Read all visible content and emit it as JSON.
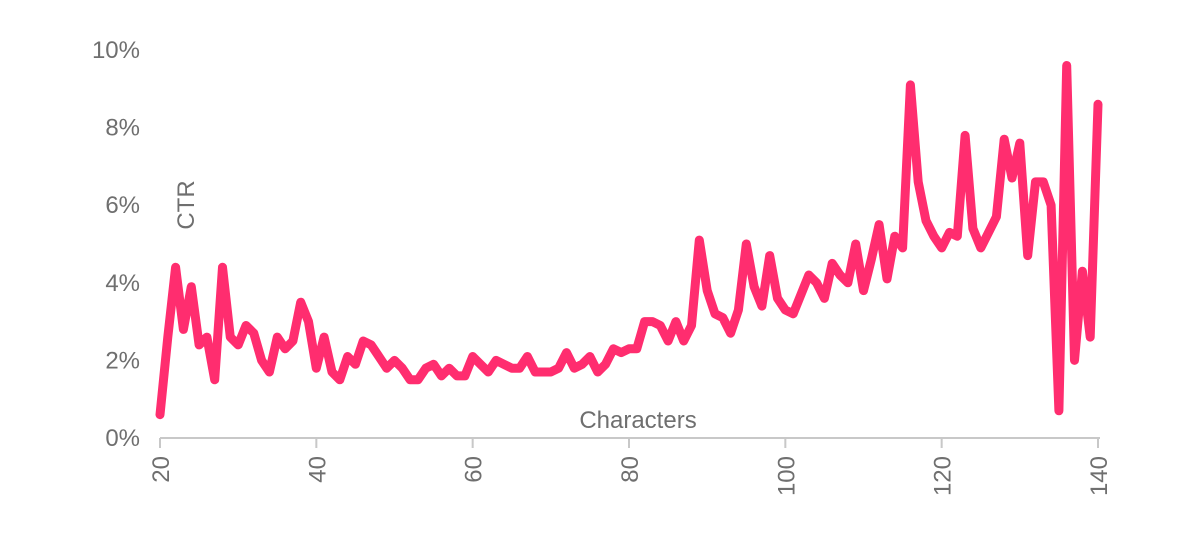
{
  "chart_data": {
    "type": "line",
    "xlabel": "Characters",
    "ylabel": "CTR",
    "xlim": [
      20,
      140
    ],
    "ylim": [
      0,
      10
    ],
    "x_ticks": [
      20,
      40,
      60,
      80,
      100,
      120,
      140
    ],
    "y_ticks": [
      {
        "value": 0,
        "label": "0%"
      },
      {
        "value": 2,
        "label": "2%"
      },
      {
        "value": 4,
        "label": "4%"
      },
      {
        "value": 6,
        "label": "6%"
      },
      {
        "value": 8,
        "label": "8%"
      },
      {
        "value": 10,
        "label": "10%"
      }
    ],
    "grid": false,
    "series": [
      {
        "color": "#ff2d6f",
        "points": [
          [
            20,
            0.6
          ],
          [
            21,
            2.6
          ],
          [
            22,
            4.4
          ],
          [
            23,
            2.8
          ],
          [
            24,
            3.9
          ],
          [
            25,
            2.4
          ],
          [
            26,
            2.6
          ],
          [
            27,
            1.5
          ],
          [
            28,
            4.4
          ],
          [
            29,
            2.6
          ],
          [
            30,
            2.4
          ],
          [
            31,
            2.9
          ],
          [
            32,
            2.7
          ],
          [
            33,
            2.0
          ],
          [
            34,
            1.7
          ],
          [
            35,
            2.6
          ],
          [
            36,
            2.3
          ],
          [
            37,
            2.5
          ],
          [
            38,
            3.5
          ],
          [
            39,
            3.0
          ],
          [
            40,
            1.8
          ],
          [
            41,
            2.6
          ],
          [
            42,
            1.7
          ],
          [
            43,
            1.5
          ],
          [
            44,
            2.1
          ],
          [
            45,
            1.9
          ],
          [
            46,
            2.5
          ],
          [
            47,
            2.4
          ],
          [
            48,
            2.1
          ],
          [
            49,
            1.8
          ],
          [
            50,
            2.0
          ],
          [
            51,
            1.8
          ],
          [
            52,
            1.5
          ],
          [
            53,
            1.5
          ],
          [
            54,
            1.8
          ],
          [
            55,
            1.9
          ],
          [
            56,
            1.6
          ],
          [
            57,
            1.8
          ],
          [
            58,
            1.6
          ],
          [
            59,
            1.6
          ],
          [
            60,
            2.1
          ],
          [
            61,
            1.9
          ],
          [
            62,
            1.7
          ],
          [
            63,
            2.0
          ],
          [
            64,
            1.9
          ],
          [
            65,
            1.8
          ],
          [
            66,
            1.8
          ],
          [
            67,
            2.1
          ],
          [
            68,
            1.7
          ],
          [
            69,
            1.7
          ],
          [
            70,
            1.7
          ],
          [
            71,
            1.8
          ],
          [
            72,
            2.2
          ],
          [
            73,
            1.8
          ],
          [
            74,
            1.9
          ],
          [
            75,
            2.1
          ],
          [
            76,
            1.7
          ],
          [
            77,
            1.9
          ],
          [
            78,
            2.3
          ],
          [
            79,
            2.2
          ],
          [
            80,
            2.3
          ],
          [
            81,
            2.3
          ],
          [
            82,
            3.0
          ],
          [
            83,
            3.0
          ],
          [
            84,
            2.9
          ],
          [
            85,
            2.5
          ],
          [
            86,
            3.0
          ],
          [
            87,
            2.5
          ],
          [
            88,
            2.9
          ],
          [
            89,
            5.1
          ],
          [
            90,
            3.8
          ],
          [
            91,
            3.2
          ],
          [
            92,
            3.1
          ],
          [
            93,
            2.7
          ],
          [
            94,
            3.3
          ],
          [
            95,
            5.0
          ],
          [
            96,
            3.9
          ],
          [
            97,
            3.4
          ],
          [
            98,
            4.7
          ],
          [
            99,
            3.6
          ],
          [
            100,
            3.3
          ],
          [
            101,
            3.2
          ],
          [
            102,
            3.7
          ],
          [
            103,
            4.2
          ],
          [
            104,
            4.0
          ],
          [
            105,
            3.6
          ],
          [
            106,
            4.5
          ],
          [
            107,
            4.2
          ],
          [
            108,
            4.0
          ],
          [
            109,
            5.0
          ],
          [
            110,
            3.8
          ],
          [
            111,
            4.6
          ],
          [
            112,
            5.5
          ],
          [
            113,
            4.1
          ],
          [
            114,
            5.2
          ],
          [
            115,
            4.9
          ],
          [
            116,
            9.1
          ],
          [
            117,
            6.6
          ],
          [
            118,
            5.6
          ],
          [
            119,
            5.2
          ],
          [
            120,
            4.9
          ],
          [
            121,
            5.3
          ],
          [
            122,
            5.2
          ],
          [
            123,
            7.8
          ],
          [
            124,
            5.4
          ],
          [
            125,
            4.9
          ],
          [
            126,
            5.3
          ],
          [
            127,
            5.7
          ],
          [
            128,
            7.7
          ],
          [
            129,
            6.7
          ],
          [
            130,
            7.6
          ],
          [
            131,
            4.7
          ],
          [
            132,
            6.6
          ],
          [
            133,
            6.6
          ],
          [
            134,
            6.0
          ],
          [
            135,
            0.7
          ],
          [
            136,
            9.6
          ],
          [
            137,
            2.0
          ],
          [
            138,
            4.3
          ],
          [
            139,
            2.6
          ],
          [
            140,
            8.6
          ]
        ]
      }
    ]
  }
}
